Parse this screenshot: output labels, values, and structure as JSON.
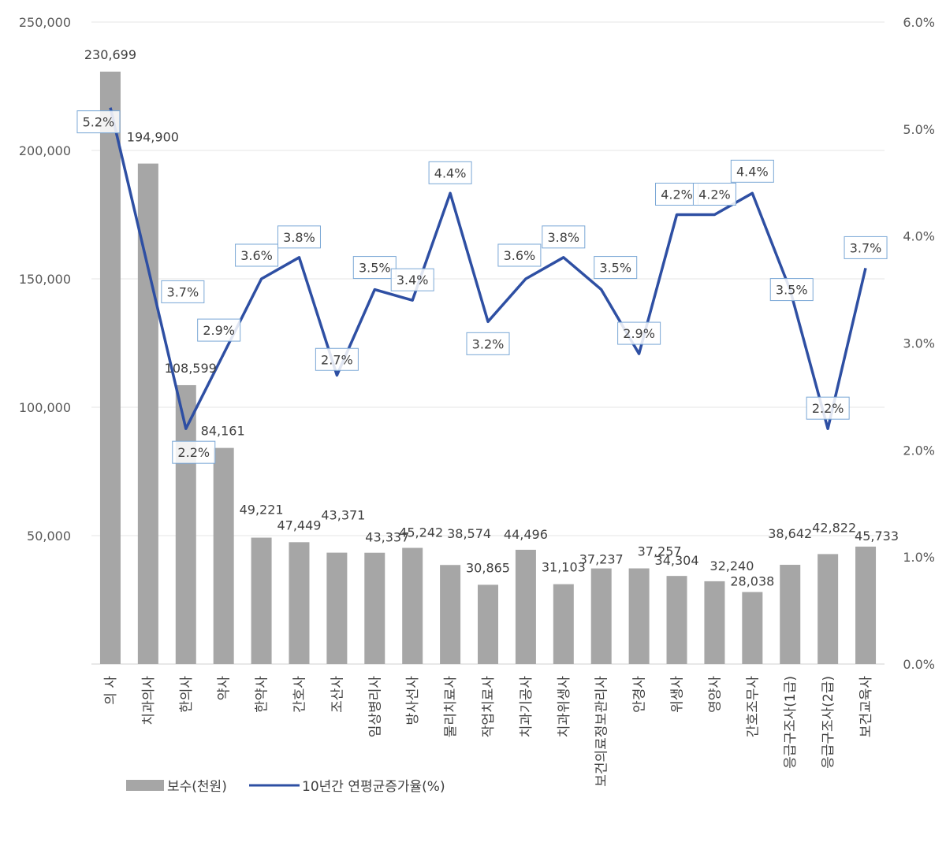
{
  "chart_data": {
    "type": "bar",
    "categories": [
      "의 사",
      "치과의사",
      "한의사",
      "약사",
      "한약사",
      "간호사",
      "조산사",
      "임상병리사",
      "방사선사",
      "물리치료사",
      "작업치료사",
      "치과기공사",
      "치과위생사",
      "보건의료정보관리사",
      "안경사",
      "위생사",
      "영양사",
      "간호조무사",
      "응급구조사(1급)",
      "응급구조사(2급)",
      "보건교육사"
    ],
    "series": [
      {
        "name": "보수(천원)",
        "type": "bar",
        "axis": "left",
        "color": "#a6a6a6",
        "values": [
          230699,
          194900,
          108599,
          84161,
          49221,
          47449,
          43371,
          43337,
          45242,
          38574,
          30865,
          44496,
          31103,
          37237,
          37257,
          34304,
          32240,
          28038,
          38642,
          42822,
          45733
        ],
        "labels": [
          "230,699",
          "194,900",
          "108,599",
          "84,161",
          "49,221",
          "47,449",
          "43,371",
          "43,337",
          "45,242",
          "38,574",
          "30,865",
          "44,496",
          "31,103",
          "37,237",
          "37,257",
          "34,304",
          "32,240",
          "28,038",
          "38,642",
          "42,822",
          "45,733"
        ]
      },
      {
        "name": "10년간 연평균증가율(%)",
        "type": "line",
        "axis": "right",
        "color": "#2e4fa3",
        "values": [
          5.2,
          3.7,
          2.2,
          2.9,
          3.6,
          3.8,
          2.7,
          3.5,
          3.4,
          4.4,
          3.2,
          3.6,
          3.8,
          3.5,
          2.9,
          4.2,
          4.2,
          4.4,
          3.5,
          2.2,
          3.7
        ],
        "labels": [
          "5.2%",
          "3.7%",
          "2.2%",
          "2.9%",
          "3.6%",
          "3.8%",
          "2.7%",
          "3.5%",
          "3.4%",
          "4.4%",
          "3.2%",
          "3.6%",
          "3.8%",
          "3.5%",
          "2.9%",
          "4.2%",
          "4.2%",
          "4.4%",
          "3.5%",
          "2.2%",
          "3.7%"
        ]
      }
    ],
    "y_left": {
      "min": 0,
      "max": 250000,
      "ticks": [
        0,
        50000,
        100000,
        150000,
        200000,
        250000
      ],
      "tick_labels": [
        "",
        "50,000",
        "100,000",
        "150,000",
        "200,000",
        "250,000"
      ]
    },
    "y_right": {
      "min": 0,
      "max": 6,
      "ticks": [
        0,
        1,
        2,
        3,
        4,
        5,
        6
      ],
      "tick_labels": [
        "0.0%",
        "1.0%",
        "2.0%",
        "3.0%",
        "4.0%",
        "5.0%",
        "6.0%"
      ]
    },
    "grid": true,
    "legend_position": "bottom-left"
  }
}
